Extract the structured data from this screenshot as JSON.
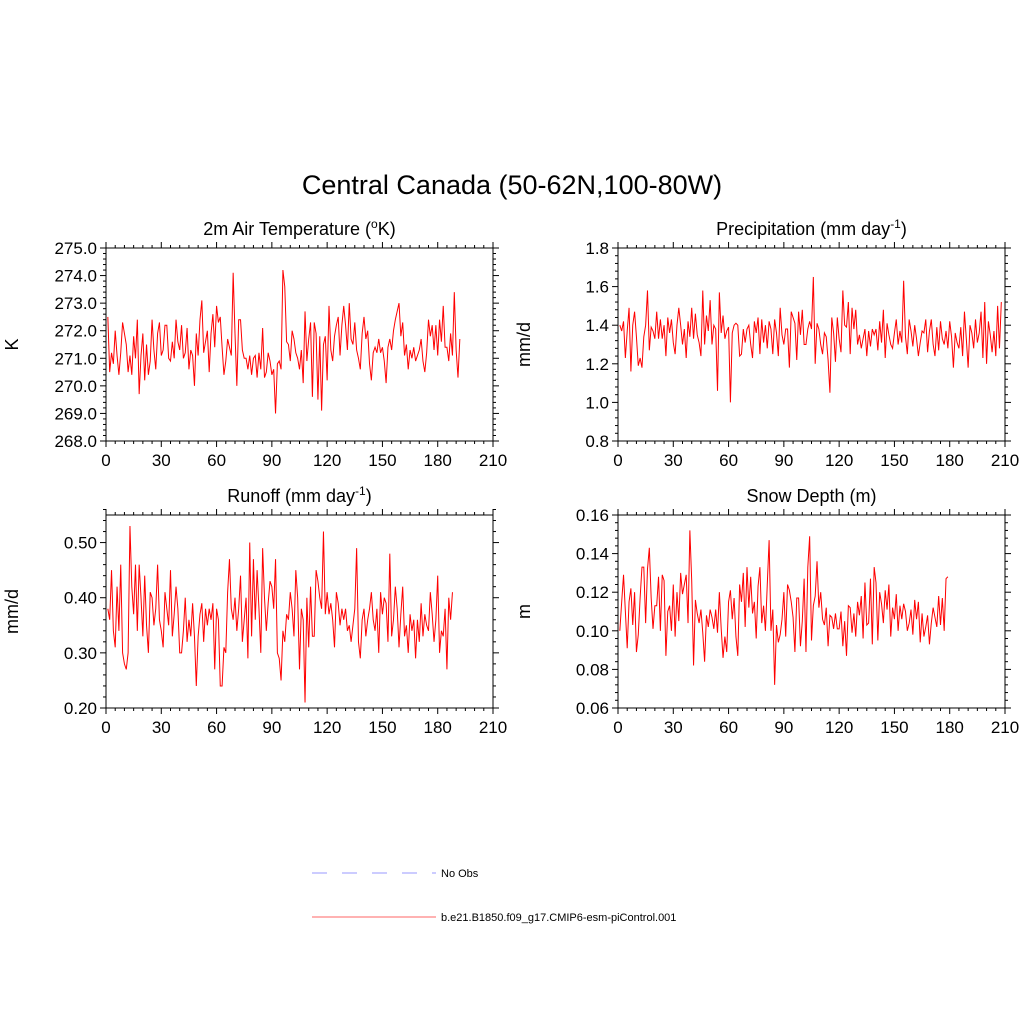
{
  "figure": {
    "title": "Central Canada (50-62N,100-80W)",
    "series_color": "#ff0000",
    "obs_color": "#9999ff"
  },
  "legend": {
    "items": [
      {
        "label": "No Obs",
        "style": "dashed",
        "color": "#9999ff"
      },
      {
        "label": "b.e21.B1850.f09_g17.CMIP6-esm-piControl.001",
        "style": "solid",
        "color": "#ff6666"
      }
    ]
  },
  "chart_data": [
    {
      "type": "line",
      "title": "2m Air Temperature (",
      "title_sup": "o",
      "title_after": "K)",
      "ylabel": "K",
      "xlim": [
        0,
        210
      ],
      "ylim": [
        268,
        275
      ],
      "x_ticks": [
        0,
        30,
        60,
        90,
        120,
        150,
        180,
        210
      ],
      "x_tick_labels": [
        "0",
        "30",
        "60",
        "90",
        "120",
        "150",
        "180",
        "210"
      ],
      "y_ticks": [
        268,
        269,
        270,
        271,
        272,
        273,
        274,
        275
      ],
      "y_tick_labels": [
        "268.0",
        "269.0",
        "270.0",
        "271.0",
        "272.0",
        "273.0",
        "274.0",
        "275.0"
      ],
      "y_minor_step": 0.2,
      "x_start": 1,
      "values": [
        272.5,
        270.5,
        271.2,
        270.8,
        272.0,
        271.1,
        270.4,
        271.2,
        272.3,
        271.9,
        271.5,
        270.5,
        271.1,
        270.4,
        271.8,
        271.0,
        272.4,
        269.7,
        271.1,
        271.9,
        270.2,
        271.5,
        270.4,
        270.9,
        272.4,
        271.3,
        270.6,
        271.9,
        272.3,
        271.1,
        271.3,
        272.2,
        272.2,
        271.0,
        270.9,
        271.6,
        271.0,
        272.4,
        271.6,
        271.3,
        272.2,
        271.0,
        271.2,
        272.1,
        270.6,
        271.3,
        271.1,
        270.0,
        271.9,
        271.1,
        272.4,
        273.1,
        271.2,
        271.6,
        272.0,
        270.5,
        271.9,
        272.6,
        271.4,
        272.9,
        272.3,
        272.5,
        271.4,
        270.4,
        270.9,
        271.7,
        271.4,
        271.1,
        274.1,
        271.9,
        270.0,
        272.4,
        272.4,
        271.3,
        271.0,
        271.0,
        270.6,
        271.1,
        270.4,
        271.0,
        271.1,
        270.3,
        271.2,
        270.6,
        272.1,
        270.3,
        270.5,
        271.2,
        270.9,
        270.4,
        270.6,
        269.0,
        270.8,
        270.9,
        270.6,
        274.2,
        273.6,
        271.6,
        271.5,
        270.9,
        272.0,
        271.7,
        271.2,
        271.0,
        270.6,
        271.3,
        270.1,
        272.7,
        270.9,
        271.7,
        272.3,
        269.6,
        272.3,
        271.9,
        269.5,
        271.8,
        269.1,
        271.5,
        271.8,
        270.2,
        272.9,
        271.3,
        270.9,
        271.8,
        272.2,
        272.5,
        271.1,
        272.2,
        272.9,
        272.2,
        271.3,
        273.0,
        271.7,
        271.5,
        272.3,
        271.3,
        271.0,
        270.6,
        271.9,
        272.5,
        271.7,
        272.0,
        270.8,
        270.2,
        271.2,
        271.4,
        271.2,
        271.7,
        271.2,
        271.4,
        270.9,
        270.1,
        271.4,
        271.7,
        271.3,
        272.0,
        272.4,
        272.7,
        273.0,
        271.8,
        272.3,
        271.1,
        271.5,
        270.6,
        271.3,
        271.0,
        271.4,
        270.9,
        271.1,
        271.3,
        271.7,
        270.9,
        270.5,
        271.2,
        272.4,
        271.8,
        272.2,
        271.3,
        272.2,
        271.1,
        272.4,
        271.6,
        272.9,
        271.4,
        271.4,
        270.9,
        271.9,
        271.1,
        273.4,
        271.3,
        270.3,
        271.7
      ]
    },
    {
      "type": "line",
      "title": "Precipitation (mm day",
      "title_sup": "-1",
      "title_after": ")",
      "ylabel": "mm/d",
      "xlim": [
        0,
        210
      ],
      "ylim": [
        0.8,
        1.8
      ],
      "x_ticks": [
        0,
        30,
        60,
        90,
        120,
        150,
        180,
        210
      ],
      "x_tick_labels": [
        "0",
        "30",
        "60",
        "90",
        "120",
        "150",
        "180",
        "210"
      ],
      "y_ticks": [
        0.8,
        1.0,
        1.2,
        1.4,
        1.6,
        1.8
      ],
      "y_tick_labels": [
        "0.8",
        "1.0",
        "1.2",
        "1.4",
        "1.6",
        "1.8"
      ],
      "y_minor_step": 0.04,
      "x_start": 1,
      "values": [
        1.4,
        1.37,
        1.42,
        1.23,
        1.37,
        1.49,
        1.16,
        1.4,
        1.47,
        1.34,
        1.19,
        1.23,
        1.18,
        1.34,
        1.4,
        1.58,
        1.27,
        1.39,
        1.37,
        1.33,
        1.47,
        1.33,
        1.43,
        1.33,
        1.4,
        1.24,
        1.44,
        1.36,
        1.43,
        1.31,
        1.25,
        1.4,
        1.49,
        1.4,
        1.3,
        1.38,
        1.23,
        1.42,
        1.34,
        1.49,
        1.33,
        1.46,
        1.35,
        1.31,
        1.24,
        1.58,
        1.3,
        1.45,
        1.37,
        1.53,
        1.3,
        1.4,
        1.38,
        1.06,
        1.57,
        1.36,
        1.45,
        1.33,
        1.37,
        1.39,
        1.0,
        1.36,
        1.4,
        1.41,
        1.4,
        1.24,
        1.25,
        1.38,
        1.31,
        1.38,
        1.4,
        1.3,
        1.23,
        1.42,
        1.36,
        1.44,
        1.25,
        1.43,
        1.31,
        1.4,
        1.28,
        1.42,
        1.38,
        1.25,
        1.43,
        1.36,
        1.24,
        1.49,
        1.35,
        1.3,
        1.38,
        1.38,
        1.18,
        1.47,
        1.44,
        1.41,
        1.22,
        1.47,
        1.35,
        1.48,
        1.3,
        1.3,
        1.38,
        1.42,
        1.38,
        1.65,
        1.2,
        1.41,
        1.38,
        1.3,
        1.25,
        1.36,
        1.34,
        1.22,
        1.05,
        1.44,
        1.36,
        1.21,
        1.44,
        1.33,
        1.26,
        1.58,
        1.4,
        1.39,
        1.52,
        1.25,
        1.49,
        1.38,
        1.48,
        1.3,
        1.35,
        1.28,
        1.33,
        1.38,
        1.24,
        1.37,
        1.29,
        1.38,
        1.35,
        1.38,
        1.27,
        1.42,
        1.31,
        1.48,
        1.23,
        1.41,
        1.35,
        1.3,
        1.28,
        1.36,
        1.43,
        1.3,
        1.37,
        1.31,
        1.63,
        1.34,
        1.25,
        1.43,
        1.37,
        1.29,
        1.4,
        1.33,
        1.24,
        1.31,
        1.37,
        1.36,
        1.43,
        1.26,
        1.37,
        1.43,
        1.3,
        1.24,
        1.39,
        1.27,
        1.42,
        1.33,
        1.3,
        1.37,
        1.28,
        1.42,
        1.34,
        1.18,
        1.36,
        1.31,
        1.28,
        1.39,
        1.24,
        1.47,
        1.33,
        1.18,
        1.4,
        1.36,
        1.28,
        1.43,
        1.31,
        1.36,
        1.47,
        1.23,
        1.52,
        1.2,
        1.42,
        1.35,
        1.26,
        1.37,
        1.24,
        1.5,
        1.28,
        1.52
      ]
    },
    {
      "type": "line",
      "title": "Runoff (mm day",
      "title_sup": "-1",
      "title_after": ")",
      "ylabel": "mm/d",
      "xlim": [
        0,
        210
      ],
      "ylim": [
        0.2,
        0.55
      ],
      "x_ticks": [
        0,
        30,
        60,
        90,
        120,
        150,
        180,
        210
      ],
      "x_tick_labels": [
        "0",
        "30",
        "60",
        "90",
        "120",
        "150",
        "180",
        "210"
      ],
      "y_ticks": [
        0.2,
        0.3,
        0.4,
        0.5
      ],
      "y_tick_labels": [
        "0.20",
        "0.30",
        "0.40",
        "0.50"
      ],
      "y_minor_step": 0.02,
      "x_start": 1,
      "values": [
        0.38,
        0.36,
        0.45,
        0.34,
        0.31,
        0.42,
        0.34,
        0.46,
        0.3,
        0.28,
        0.27,
        0.3,
        0.53,
        0.42,
        0.37,
        0.46,
        0.34,
        0.46,
        0.4,
        0.33,
        0.44,
        0.35,
        0.3,
        0.41,
        0.4,
        0.35,
        0.38,
        0.46,
        0.36,
        0.34,
        0.31,
        0.41,
        0.38,
        0.35,
        0.45,
        0.33,
        0.37,
        0.42,
        0.38,
        0.3,
        0.3,
        0.34,
        0.4,
        0.32,
        0.36,
        0.33,
        0.39,
        0.33,
        0.24,
        0.33,
        0.37,
        0.39,
        0.32,
        0.38,
        0.35,
        0.38,
        0.36,
        0.39,
        0.27,
        0.38,
        0.36,
        0.24,
        0.24,
        0.31,
        0.3,
        0.41,
        0.47,
        0.38,
        0.36,
        0.4,
        0.34,
        0.38,
        0.44,
        0.32,
        0.36,
        0.4,
        0.29,
        0.5,
        0.33,
        0.47,
        0.36,
        0.45,
        0.38,
        0.3,
        0.49,
        0.4,
        0.34,
        0.39,
        0.43,
        0.42,
        0.38,
        0.47,
        0.3,
        0.29,
        0.25,
        0.34,
        0.32,
        0.37,
        0.36,
        0.41,
        0.38,
        0.33,
        0.45,
        0.4,
        0.27,
        0.38,
        0.36,
        0.21,
        0.4,
        0.31,
        0.42,
        0.33,
        0.33,
        0.45,
        0.43,
        0.4,
        0.38,
        0.52,
        0.37,
        0.41,
        0.37,
        0.39,
        0.36,
        0.31,
        0.41,
        0.39,
        0.35,
        0.38,
        0.36,
        0.38,
        0.34,
        0.35,
        0.32,
        0.35,
        0.38,
        0.49,
        0.32,
        0.29,
        0.36,
        0.38,
        0.33,
        0.36,
        0.38,
        0.41,
        0.36,
        0.34,
        0.38,
        0.3,
        0.41,
        0.37,
        0.4,
        0.39,
        0.32,
        0.48,
        0.33,
        0.36,
        0.42,
        0.38,
        0.31,
        0.37,
        0.42,
        0.33,
        0.35,
        0.3,
        0.37,
        0.34,
        0.36,
        0.29,
        0.36,
        0.32,
        0.39,
        0.33,
        0.37,
        0.35,
        0.34,
        0.41,
        0.37,
        0.32,
        0.36,
        0.44,
        0.3,
        0.34,
        0.33,
        0.38,
        0.27,
        0.4,
        0.36,
        0.41
      ]
    },
    {
      "type": "line",
      "title": "Snow Depth (m)",
      "title_sup": "",
      "title_after": "",
      "ylabel": "m",
      "xlim": [
        0,
        210
      ],
      "ylim": [
        0.06,
        0.16
      ],
      "x_ticks": [
        0,
        30,
        60,
        90,
        120,
        150,
        180,
        210
      ],
      "x_tick_labels": [
        "0",
        "30",
        "60",
        "90",
        "120",
        "150",
        "180",
        "210"
      ],
      "y_ticks": [
        0.06,
        0.08,
        0.1,
        0.12,
        0.14,
        0.16
      ],
      "y_tick_labels": [
        "0.06",
        "0.08",
        "0.10",
        "0.12",
        "0.14",
        "0.16"
      ],
      "y_minor_step": 0.004,
      "x_start": 1,
      "values": [
        0.1,
        0.115,
        0.129,
        0.11,
        0.091,
        0.115,
        0.122,
        0.103,
        0.12,
        0.089,
        0.098,
        0.117,
        0.133,
        0.133,
        0.104,
        0.132,
        0.143,
        0.117,
        0.101,
        0.113,
        0.113,
        0.128,
        0.1,
        0.129,
        0.126,
        0.087,
        0.11,
        0.113,
        0.1,
        0.124,
        0.097,
        0.12,
        0.105,
        0.13,
        0.119,
        0.124,
        0.129,
        0.104,
        0.152,
        0.126,
        0.082,
        0.116,
        0.109,
        0.104,
        0.111,
        0.099,
        0.084,
        0.108,
        0.102,
        0.111,
        0.107,
        0.101,
        0.111,
        0.099,
        0.12,
        0.101,
        0.086,
        0.097,
        0.089,
        0.115,
        0.121,
        0.106,
        0.117,
        0.097,
        0.087,
        0.124,
        0.115,
        0.13,
        0.102,
        0.133,
        0.112,
        0.128,
        0.109,
        0.115,
        0.096,
        0.123,
        0.133,
        0.104,
        0.113,
        0.1,
        0.124,
        0.147,
        0.1,
        0.111,
        0.072,
        0.103,
        0.094,
        0.098,
        0.106,
        0.12,
        0.097,
        0.124,
        0.121,
        0.115,
        0.107,
        0.089,
        0.117,
        0.117,
        0.092,
        0.105,
        0.127,
        0.089,
        0.133,
        0.149,
        0.095,
        0.113,
        0.118,
        0.136,
        0.112,
        0.12,
        0.106,
        0.103,
        0.112,
        0.092,
        0.108,
        0.107,
        0.101,
        0.109,
        0.101,
        0.101,
        0.11,
        0.092,
        0.105,
        0.087,
        0.113,
        0.112,
        0.099,
        0.109,
        0.097,
        0.115,
        0.108,
        0.118,
        0.096,
        0.125,
        0.103,
        0.104,
        0.127,
        0.093,
        0.133,
        0.125,
        0.095,
        0.12,
        0.114,
        0.104,
        0.121,
        0.111,
        0.124,
        0.097,
        0.112,
        0.106,
        0.119,
        0.1,
        0.113,
        0.106,
        0.114,
        0.11,
        0.1,
        0.104,
        0.111,
        0.098,
        0.116,
        0.106,
        0.115,
        0.094,
        0.109,
        0.097,
        0.102,
        0.108,
        0.093,
        0.104,
        0.112,
        0.107,
        0.102,
        0.118,
        0.103,
        0.117,
        0.1,
        0.127,
        0.128
      ]
    }
  ]
}
